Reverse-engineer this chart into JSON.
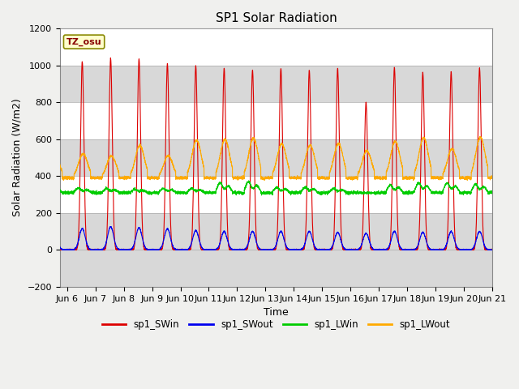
{
  "title": "SP1 Solar Radiation",
  "xlabel": "Time",
  "ylabel": "Solar Radiation (W/m2)",
  "ylim": [
    -200,
    1200
  ],
  "xlim_days": [
    5.75,
    21.0
  ],
  "yticks": [
    -200,
    0,
    200,
    400,
    600,
    800,
    1000,
    1200
  ],
  "xtick_labels": [
    "Jun 6",
    "Jun 7",
    "Jun 8",
    "Jun 9",
    "Jun 10",
    "Jun 11",
    "Jun 12",
    "Jun 13",
    "Jun 14",
    "Jun 15",
    "Jun 16",
    "Jun 17",
    "Jun 18",
    "Jun 19",
    "Jun 20",
    "Jun 21"
  ],
  "xtick_days": [
    6,
    7,
    8,
    9,
    10,
    11,
    12,
    13,
    14,
    15,
    16,
    17,
    18,
    19,
    20,
    21
  ],
  "start_day": 6,
  "colors": {
    "SWin": "#dd0000",
    "SWout": "#0000ee",
    "LWin": "#00cc00",
    "LWout": "#ffaa00"
  },
  "tz_label": "TZ_osu",
  "tz_text_color": "#880000",
  "tz_box_color": "#ffffcc",
  "tz_edge_color": "#888800",
  "band_colors_gray": [
    "#e0e0e0",
    "#ffffff"
  ],
  "legend_labels": [
    "sp1_SWin",
    "sp1_SWout",
    "sp1_LWin",
    "sp1_LWout"
  ],
  "fig_bg": "#f0f0f0",
  "SWin_peaks": [
    1020,
    1040,
    1035,
    1010,
    1000,
    985,
    975,
    985,
    975,
    985,
    800,
    990,
    965,
    965,
    985
  ],
  "SWout_peaks": [
    115,
    125,
    120,
    115,
    105,
    100,
    100,
    100,
    100,
    95,
    90,
    100,
    95,
    100,
    100
  ],
  "LWin_night": 310,
  "LWin_peaks": [
    350,
    348,
    340,
    348,
    348,
    400,
    410,
    358,
    360,
    348,
    308,
    378,
    400,
    398,
    388
  ],
  "LWout_night": 390,
  "LWout_peaks": [
    520,
    510,
    565,
    510,
    595,
    600,
    605,
    575,
    568,
    578,
    538,
    588,
    608,
    548,
    612
  ]
}
